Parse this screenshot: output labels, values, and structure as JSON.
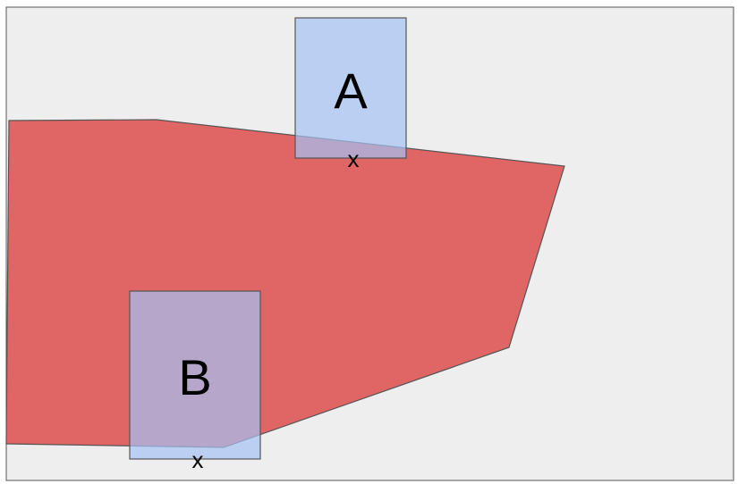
{
  "colors": {
    "canvas_background": "#eeeeee",
    "canvas_border": "#555555",
    "region_fill": "#e06666",
    "region_stroke": "#555555",
    "box_fill": "#a4c2f4",
    "box_fill_opacity": 0.7,
    "box_stroke": "#555555",
    "text": "#000000"
  },
  "boxes": [
    {
      "id": "A",
      "label": "A",
      "marker": "x"
    },
    {
      "id": "B",
      "label": "B",
      "marker": "x"
    }
  ]
}
